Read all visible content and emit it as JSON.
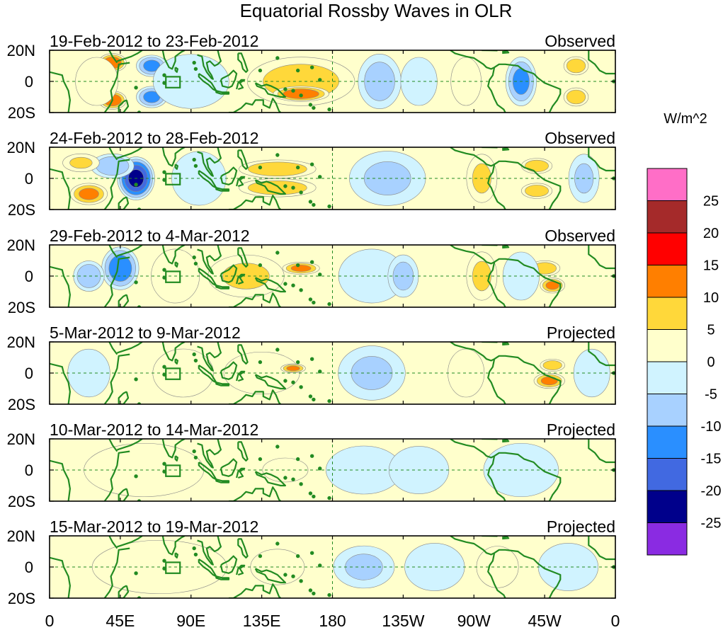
{
  "chart_data": {
    "type": "heatmap",
    "title": "Equatorial Rossby Waves in OLR",
    "units": "W/m^2",
    "x_ticks": [
      "0",
      "45E",
      "90E",
      "135E",
      "180",
      "135W",
      "90W",
      "45W",
      "0"
    ],
    "y_ticks": [
      "20N",
      "0",
      "20S"
    ],
    "colorbar": {
      "labels": [
        "25",
        "20",
        "15",
        "10",
        "5",
        "0",
        "-5",
        "-10",
        "-15",
        "-20",
        "-25"
      ],
      "colors": [
        "#ff6ec7",
        "#a52a2a",
        "#ff0000",
        "#ff7f00",
        "#ffd83a",
        "#ffffcc",
        "#d0f3ff",
        "#a8d1ff",
        "#2a8fff",
        "#4169e1",
        "#00008b",
        "#8a2be2"
      ]
    },
    "panels": [
      {
        "date_range": "19-Feb-2012 to 23-Feb-2012",
        "type": "Observed",
        "anomalies": [
          {
            "lon": 40,
            "lat": 12,
            "value": 15,
            "rlon": 9,
            "rlat": 6
          },
          {
            "lon": 40,
            "lat": -12,
            "value": 15,
            "rlon": 9,
            "rlat": 6
          },
          {
            "lon": 30,
            "lat": 0,
            "value": 5,
            "rlon": 14,
            "rlat": 16
          },
          {
            "lon": 65,
            "lat": 10,
            "value": -12,
            "rlon": 10,
            "rlat": 7
          },
          {
            "lon": 65,
            "lat": -10,
            "value": -12,
            "rlon": 10,
            "rlat": 7
          },
          {
            "lon": 90,
            "lat": 0,
            "value": -5,
            "rlon": 25,
            "rlat": 18
          },
          {
            "lon": 155,
            "lat": 8,
            "value": 15,
            "rlon": 22,
            "rlat": 6
          },
          {
            "lon": 160,
            "lat": 0,
            "value": 8,
            "rlon": 35,
            "rlat": 16
          },
          {
            "lon": 160,
            "lat": -8,
            "value": 15,
            "rlon": 18,
            "rlat": 5
          },
          {
            "lon": 210,
            "lat": 0,
            "value": -8,
            "rlon": 14,
            "rlat": 18
          },
          {
            "lon": 235,
            "lat": 0,
            "value": -5,
            "rlon": 12,
            "rlat": 16
          },
          {
            "lon": 265,
            "lat": 0,
            "value": 5,
            "rlon": 10,
            "rlat": 16
          },
          {
            "lon": 300,
            "lat": 0,
            "value": -12,
            "rlon": 10,
            "rlat": 16
          },
          {
            "lon": 335,
            "lat": 10,
            "value": 10,
            "rlon": 8,
            "rlat": 6
          },
          {
            "lon": 335,
            "lat": -10,
            "value": 10,
            "rlon": 8,
            "rlat": 6
          }
        ]
      },
      {
        "date_range": "24-Feb-2012 to 28-Feb-2012",
        "type": "Observed",
        "anomalies": [
          {
            "lon": 55,
            "lat": 0,
            "value": -22,
            "rlon": 12,
            "rlat": 14
          },
          {
            "lon": 40,
            "lat": 8,
            "value": -10,
            "rlon": 14,
            "rlat": 8
          },
          {
            "lon": 25,
            "lat": -10,
            "value": 12,
            "rlon": 12,
            "rlat": 7
          },
          {
            "lon": 20,
            "lat": 10,
            "value": 6,
            "rlon": 12,
            "rlat": 6
          },
          {
            "lon": 95,
            "lat": 0,
            "value": -4,
            "rlon": 18,
            "rlat": 18
          },
          {
            "lon": 145,
            "lat": 6,
            "value": 10,
            "rlon": 25,
            "rlat": 6
          },
          {
            "lon": 145,
            "lat": -6,
            "value": 10,
            "rlon": 25,
            "rlat": 6
          },
          {
            "lon": 215,
            "lat": 0,
            "value": -6,
            "rlon": 25,
            "rlat": 18
          },
          {
            "lon": 275,
            "lat": 0,
            "value": 6,
            "rlon": 10,
            "rlat": 16
          },
          {
            "lon": 310,
            "lat": 8,
            "value": 10,
            "rlon": 10,
            "rlat": 5
          },
          {
            "lon": 310,
            "lat": -8,
            "value": 10,
            "rlon": 10,
            "rlat": 5
          },
          {
            "lon": 340,
            "lat": 0,
            "value": -6,
            "rlon": 10,
            "rlat": 16
          }
        ]
      },
      {
        "date_range": "29-Feb-2012 to 4-Mar-2012",
        "type": "Observed",
        "anomalies": [
          {
            "lon": 45,
            "lat": 5,
            "value": -14,
            "rlon": 12,
            "rlat": 14
          },
          {
            "lon": 25,
            "lat": 0,
            "value": -10,
            "rlon": 10,
            "rlat": 10
          },
          {
            "lon": 80,
            "lat": 0,
            "value": 4,
            "rlon": 16,
            "rlat": 18
          },
          {
            "lon": 125,
            "lat": 0,
            "value": 6,
            "rlon": 25,
            "rlat": 14
          },
          {
            "lon": 160,
            "lat": 5,
            "value": 12,
            "rlon": 12,
            "rlat": 4
          },
          {
            "lon": 205,
            "lat": 0,
            "value": -4,
            "rlon": 22,
            "rlat": 18
          },
          {
            "lon": 225,
            "lat": 0,
            "value": -7,
            "rlon": 10,
            "rlat": 14
          },
          {
            "lon": 275,
            "lat": 0,
            "value": 6,
            "rlon": 10,
            "rlat": 16
          },
          {
            "lon": 315,
            "lat": 5,
            "value": 10,
            "rlon": 10,
            "rlat": 5
          },
          {
            "lon": 320,
            "lat": -6,
            "value": 12,
            "rlon": 8,
            "rlat": 5
          },
          {
            "lon": 300,
            "lat": 0,
            "value": -5,
            "rlon": 12,
            "rlat": 16
          }
        ]
      },
      {
        "date_range": "5-Mar-2012 to 9-Mar-2012",
        "type": "Projected",
        "anomalies": [
          {
            "lon": 25,
            "lat": 0,
            "value": -4,
            "rlon": 14,
            "rlat": 16
          },
          {
            "lon": 85,
            "lat": 0,
            "value": 5,
            "rlon": 20,
            "rlat": 16
          },
          {
            "lon": 135,
            "lat": 0,
            "value": 5,
            "rlon": 25,
            "rlat": 14
          },
          {
            "lon": 155,
            "lat": 3,
            "value": 12,
            "rlon": 8,
            "rlat": 3
          },
          {
            "lon": 205,
            "lat": 0,
            "value": -6,
            "rlon": 22,
            "rlat": 18
          },
          {
            "lon": 265,
            "lat": 0,
            "value": 5,
            "rlon": 12,
            "rlat": 16
          },
          {
            "lon": 320,
            "lat": 5,
            "value": 10,
            "rlon": 8,
            "rlat": 4
          },
          {
            "lon": 318,
            "lat": -5,
            "value": 12,
            "rlon": 10,
            "rlat": 5
          },
          {
            "lon": 345,
            "lat": 0,
            "value": -4,
            "rlon": 12,
            "rlat": 16
          }
        ]
      },
      {
        "date_range": "10-Mar-2012 to 14-Mar-2012",
        "type": "Projected",
        "anomalies": [
          {
            "lon": 60,
            "lat": 0,
            "value": 3,
            "rlon": 40,
            "rlat": 18
          },
          {
            "lon": 150,
            "lat": 0,
            "value": 5,
            "rlon": 15,
            "rlat": 8
          },
          {
            "lon": 200,
            "lat": 0,
            "value": -5,
            "rlon": 25,
            "rlat": 16
          },
          {
            "lon": 235,
            "lat": 0,
            "value": -3,
            "rlon": 20,
            "rlat": 16
          },
          {
            "lon": 300,
            "lat": 0,
            "value": -3,
            "rlon": 25,
            "rlat": 18
          }
        ]
      },
      {
        "date_range": "15-Mar-2012 to 19-Mar-2012",
        "type": "Projected",
        "anomalies": [
          {
            "lon": 70,
            "lat": 0,
            "value": 3,
            "rlon": 45,
            "rlat": 18
          },
          {
            "lon": 145,
            "lat": 0,
            "value": 3,
            "rlon": 18,
            "rlat": 12
          },
          {
            "lon": 200,
            "lat": 0,
            "value": -6,
            "rlon": 20,
            "rlat": 14
          },
          {
            "lon": 245,
            "lat": 0,
            "value": -3,
            "rlon": 20,
            "rlat": 16
          },
          {
            "lon": 285,
            "lat": 0,
            "value": 3,
            "rlon": 14,
            "rlat": 14
          },
          {
            "lon": 330,
            "lat": 0,
            "value": -3,
            "rlon": 20,
            "rlat": 16
          }
        ]
      }
    ]
  }
}
